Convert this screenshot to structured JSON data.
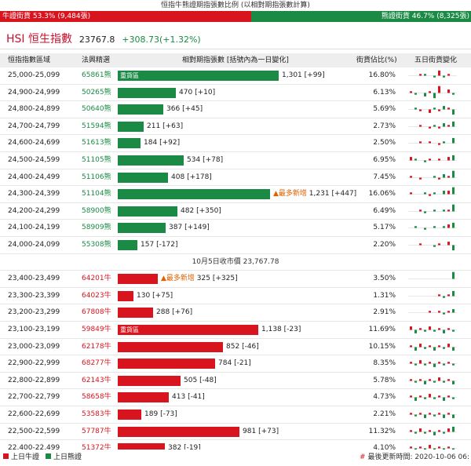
{
  "title": "恒指牛熊證期指張數比例 (以相對期指張數計算)",
  "ratio": {
    "bull_label": "牛證街貨 53.3% (9,484張)",
    "bull_pct": 53.3,
    "bear_label": "熊證街貨 46.7% (8,325張)",
    "bear_pct": 46.7
  },
  "hsi": {
    "name": "HSI 恒生指數",
    "level": "23767.8",
    "change": "+308.73(+1.32%)"
  },
  "headers": {
    "range": "恒指指數區域",
    "code": "法興精選",
    "contracts": "相對期指張數 [括號內為一日變化]",
    "pct": "街貨佔比(%)",
    "five_day": "五日街貨變化"
  },
  "colors": {
    "bull": "#d8141e",
    "bear": "#1a8a45"
  },
  "bear_rows": [
    {
      "range": "25,000-25,099",
      "code": "65861熊",
      "heavy": "重貨區",
      "value": "1,301",
      "change": "[+99]",
      "num": 1301,
      "most": "",
      "pct": "16.80%",
      "spark": [
        0,
        0,
        1,
        1,
        0,
        -1,
        3,
        -1,
        1,
        0
      ]
    },
    {
      "range": "24,900-24,999",
      "code": "50265熊",
      "heavy": "",
      "value": "470",
      "change": "[+10]",
      "num": 470,
      "most": "",
      "pct": "6.13%",
      "spark": [
        1,
        -1,
        0,
        -2,
        1,
        -3,
        4,
        0,
        2,
        -1
      ]
    },
    {
      "range": "24,800-24,899",
      "code": "50640熊",
      "heavy": "",
      "value": "366",
      "change": "[+45]",
      "num": 366,
      "most": "",
      "pct": "5.69%",
      "spark": [
        0,
        1,
        -1,
        0,
        -2,
        1,
        -1,
        2,
        1,
        -3
      ]
    },
    {
      "range": "24,700-24,799",
      "code": "51594熊",
      "heavy": "",
      "value": "211",
      "change": "[+63]",
      "num": 211,
      "most": "",
      "pct": "2.73%",
      "spark": [
        0,
        0,
        1,
        0,
        -1,
        1,
        -1,
        2,
        1,
        3
      ]
    },
    {
      "range": "24,600-24,699",
      "code": "51613熊",
      "heavy": "",
      "value": "184",
      "change": "[+92]",
      "num": 184,
      "most": "",
      "pct": "2.50%",
      "spark": [
        0,
        0,
        1,
        0,
        1,
        0,
        -1,
        1,
        0,
        3
      ]
    },
    {
      "range": "24,500-24,599",
      "code": "51105熊",
      "heavy": "",
      "value": "534",
      "change": "[+78]",
      "num": 534,
      "most": "",
      "pct": "6.95%",
      "spark": [
        2,
        1,
        0,
        -1,
        1,
        0,
        1,
        0,
        2,
        3
      ]
    },
    {
      "range": "24,400-24,499",
      "code": "51106熊",
      "heavy": "",
      "value": "408",
      "change": "[+178]",
      "num": 408,
      "most": "",
      "pct": "7.45%",
      "spark": [
        1,
        0,
        -1,
        0,
        0,
        1,
        -1,
        2,
        1,
        4
      ]
    },
    {
      "range": "24,300-24,399",
      "code": "51104熊",
      "heavy": "",
      "value": "1,231",
      "change": "[+447]",
      "num": 1231,
      "most": "▲最多新增",
      "pct": "16.06%",
      "spark": [
        1,
        0,
        0,
        1,
        -1,
        1,
        0,
        2,
        2,
        4
      ]
    },
    {
      "range": "24,200-24,299",
      "code": "58900熊",
      "heavy": "",
      "value": "482",
      "change": "[+350]",
      "num": 482,
      "most": "",
      "pct": "6.49%",
      "spark": [
        0,
        0,
        1,
        -1,
        0,
        1,
        0,
        1,
        1,
        4
      ]
    },
    {
      "range": "24,100-24,199",
      "code": "58909熊",
      "heavy": "",
      "value": "387",
      "change": "[+149]",
      "num": 387,
      "most": "",
      "pct": "5.17%",
      "spark": [
        0,
        1,
        0,
        -1,
        0,
        1,
        0,
        1,
        2,
        3
      ]
    },
    {
      "range": "24,000-24,099",
      "code": "55308熊",
      "heavy": "",
      "value": "157",
      "change": "[-172]",
      "num": 157,
      "most": "",
      "pct": "2.20%",
      "spark": [
        0,
        0,
        1,
        0,
        0,
        -1,
        1,
        0,
        2,
        -3
      ]
    }
  ],
  "divider": "10月5日收市價 23,767.78",
  "bull_rows": [
    {
      "range": "23,400-23,499",
      "code": "64201牛",
      "heavy": "",
      "value": "325",
      "change": "[+325]",
      "num": 325,
      "most": "▲最多新增",
      "pct": "3.50%",
      "spark": [
        0,
        0,
        0,
        0,
        0,
        0,
        0,
        0,
        0,
        4
      ]
    },
    {
      "range": "23,300-23,399",
      "code": "64023牛",
      "heavy": "",
      "value": "130",
      "change": "[+75]",
      "num": 130,
      "most": "",
      "pct": "1.31%",
      "spark": [
        0,
        0,
        0,
        0,
        0,
        0,
        1,
        -1,
        1,
        3
      ]
    },
    {
      "range": "23,200-23,299",
      "code": "67808牛",
      "heavy": "",
      "value": "288",
      "change": "[+76]",
      "num": 288,
      "most": "",
      "pct": "2.91%",
      "spark": [
        0,
        0,
        0,
        0,
        1,
        0,
        1,
        -1,
        1,
        2
      ]
    },
    {
      "range": "23,100-23,199",
      "code": "59849牛",
      "heavy": "重貨區",
      "value": "1,138",
      "change": "[-23]",
      "num": 1138,
      "most": "",
      "pct": "11.69%",
      "spark": [
        2,
        -2,
        1,
        -1,
        2,
        -1,
        1,
        -2,
        1,
        -1
      ]
    },
    {
      "range": "23,000-23,099",
      "code": "62178牛",
      "heavy": "",
      "value": "852",
      "change": "[-46]",
      "num": 852,
      "most": "",
      "pct": "10.15%",
      "spark": [
        1,
        -2,
        2,
        -1,
        1,
        -2,
        1,
        -1,
        2,
        -2
      ]
    },
    {
      "range": "22,900-22,999",
      "code": "68277牛",
      "heavy": "",
      "value": "784",
      "change": "[-21]",
      "num": 784,
      "most": "",
      "pct": "8.35%",
      "spark": [
        1,
        -1,
        2,
        -1,
        1,
        -2,
        1,
        -1,
        1,
        -1
      ]
    },
    {
      "range": "22,800-22,899",
      "code": "62143牛",
      "heavy": "",
      "value": "505",
      "change": "[-48]",
      "num": 505,
      "most": "",
      "pct": "5.78%",
      "spark": [
        1,
        -1,
        1,
        -2,
        1,
        -1,
        2,
        -1,
        1,
        -2
      ]
    },
    {
      "range": "22,700-22,799",
      "code": "58658牛",
      "heavy": "",
      "value": "413",
      "change": "[-41]",
      "num": 413,
      "most": "",
      "pct": "4.73%",
      "spark": [
        1,
        -2,
        1,
        -1,
        2,
        -1,
        1,
        -2,
        1,
        -1
      ]
    },
    {
      "range": "22,600-22,699",
      "code": "53583牛",
      "heavy": "",
      "value": "189",
      "change": "[-73]",
      "num": 189,
      "most": "",
      "pct": "2.21%",
      "spark": [
        1,
        -1,
        1,
        -2,
        1,
        -1,
        1,
        -2,
        1,
        -2
      ]
    },
    {
      "range": "22,500-22,599",
      "code": "57787牛",
      "heavy": "",
      "value": "981",
      "change": "[+73]",
      "num": 981,
      "most": "",
      "pct": "11.32%",
      "spark": [
        1,
        -1,
        2,
        -1,
        1,
        -2,
        1,
        -1,
        2,
        3
      ]
    },
    {
      "range": "22,400-22,499",
      "code": "51372牛",
      "heavy": "",
      "value": "382",
      "change": "[-19]",
      "num": 382,
      "most": "",
      "pct": "4.10%",
      "spark": [
        1,
        -1,
        1,
        -1,
        2,
        -1,
        1,
        -1,
        1,
        -1
      ]
    }
  ],
  "footer": {
    "legend_bull": "上日牛證",
    "legend_bear": "上日熊證",
    "update_prefix": "#",
    "update": "最後更新時間: 2020-10-06 06:"
  }
}
